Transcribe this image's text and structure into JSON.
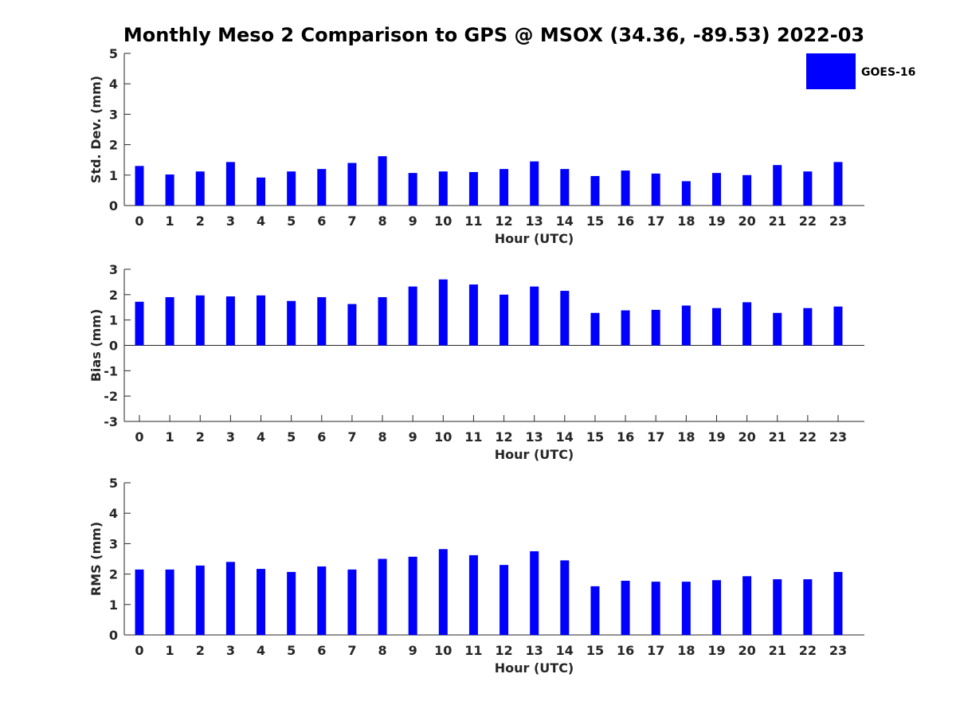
{
  "title": "Monthly Meso 2 Comparison to GPS @ MSOX (34.36, -89.53) 2022-03",
  "legend": {
    "label": "GOES-16",
    "color": "#0000ff"
  },
  "chart_data": [
    {
      "type": "bar",
      "name": "std-dev",
      "xlabel": "Hour (UTC)",
      "ylabel": "Std. Dev. (mm)",
      "ylim": [
        0,
        5
      ],
      "yticks": [
        0,
        1,
        2,
        3,
        4,
        5
      ],
      "categories": [
        "0",
        "1",
        "2",
        "3",
        "4",
        "5",
        "6",
        "7",
        "8",
        "9",
        "10",
        "11",
        "12",
        "13",
        "14",
        "15",
        "16",
        "17",
        "18",
        "19",
        "20",
        "21",
        "22",
        "23"
      ],
      "series": [
        {
          "name": "GOES-16",
          "color": "#0000ff",
          "values": [
            1.3,
            1.02,
            1.12,
            1.43,
            0.92,
            1.12,
            1.2,
            1.4,
            1.62,
            1.07,
            1.12,
            1.1,
            1.2,
            1.45,
            1.2,
            0.97,
            1.15,
            1.05,
            0.8,
            1.07,
            1.0,
            1.33,
            1.12,
            1.43
          ]
        }
      ]
    },
    {
      "type": "bar",
      "name": "bias",
      "xlabel": "Hour (UTC)",
      "ylabel": "Bias (mm)",
      "ylim": [
        -3,
        3
      ],
      "yticks": [
        -3,
        -2,
        -1,
        0,
        1,
        2,
        3
      ],
      "categories": [
        "0",
        "1",
        "2",
        "3",
        "4",
        "5",
        "6",
        "7",
        "8",
        "9",
        "10",
        "11",
        "12",
        "13",
        "14",
        "15",
        "16",
        "17",
        "18",
        "19",
        "20",
        "21",
        "22",
        "23"
      ],
      "series": [
        {
          "name": "GOES-16",
          "color": "#0000ff",
          "values": [
            1.72,
            1.9,
            1.97,
            1.93,
            1.97,
            1.75,
            1.9,
            1.63,
            1.9,
            2.32,
            2.6,
            2.4,
            2.0,
            2.32,
            2.15,
            1.28,
            1.38,
            1.4,
            1.57,
            1.47,
            1.7,
            1.28,
            1.47,
            1.53
          ]
        }
      ]
    },
    {
      "type": "bar",
      "name": "rms",
      "xlabel": "Hour (UTC)",
      "ylabel": "RMS (mm)",
      "ylim": [
        0,
        5
      ],
      "yticks": [
        0,
        1,
        2,
        3,
        4,
        5
      ],
      "categories": [
        "0",
        "1",
        "2",
        "3",
        "4",
        "5",
        "6",
        "7",
        "8",
        "9",
        "10",
        "11",
        "12",
        "13",
        "14",
        "15",
        "16",
        "17",
        "18",
        "19",
        "20",
        "21",
        "22",
        "23"
      ],
      "series": [
        {
          "name": "GOES-16",
          "color": "#0000ff",
          "values": [
            2.15,
            2.15,
            2.28,
            2.4,
            2.17,
            2.07,
            2.25,
            2.15,
            2.5,
            2.57,
            2.82,
            2.62,
            2.3,
            2.75,
            2.45,
            1.6,
            1.78,
            1.75,
            1.75,
            1.8,
            1.93,
            1.83,
            1.83,
            2.07
          ]
        }
      ]
    }
  ]
}
